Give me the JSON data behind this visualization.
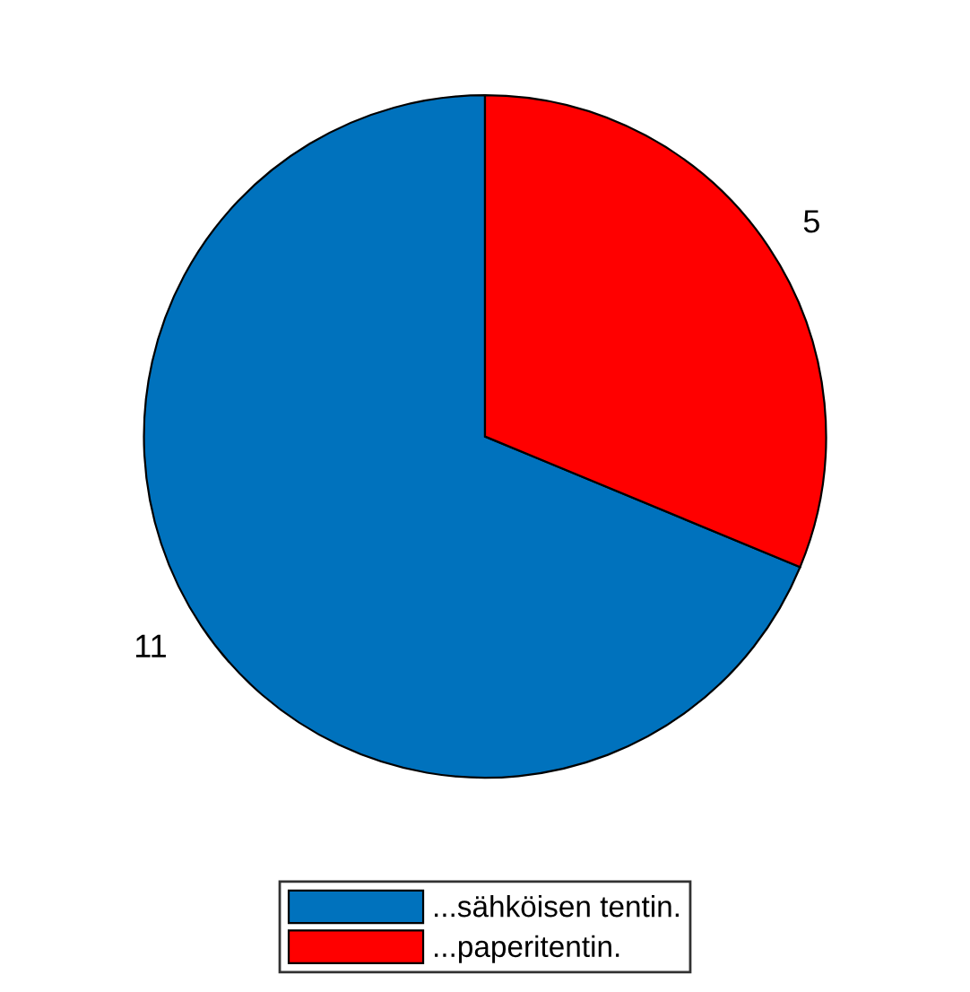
{
  "chart_data": {
    "type": "pie",
    "categories": [
      "...sähköisen tentin.",
      "...paperitentin."
    ],
    "values": [
      11,
      5
    ],
    "colors": [
      "#0072bd",
      "#ff0000"
    ],
    "data_labels": true,
    "legend": "bottom"
  }
}
